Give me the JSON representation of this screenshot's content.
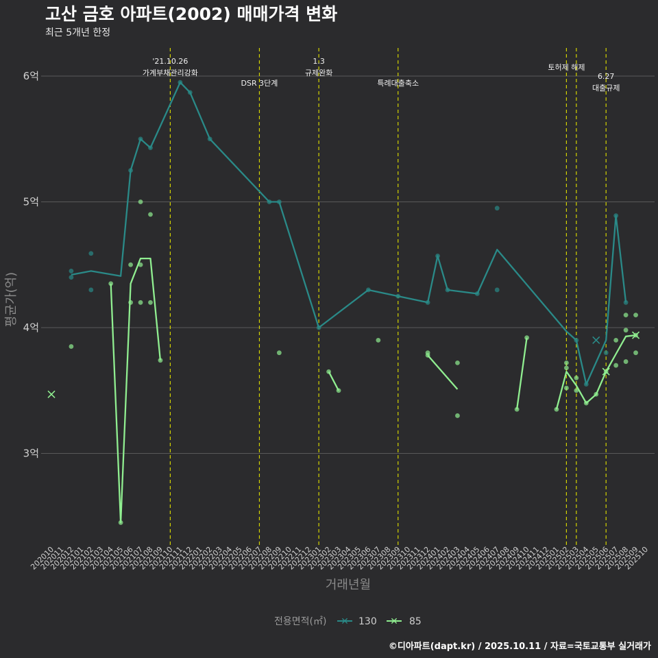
{
  "chart_data": {
    "type": "line",
    "title": "고산 금호 아파트(2002) 매매가격 변화",
    "subtitle": "최근 5개년 한정",
    "xlabel": "거래년월",
    "ylabel": "평균가(억)",
    "y_ticks": [
      3,
      4,
      5,
      6
    ],
    "y_tick_labels": [
      "3억",
      "4억",
      "5억",
      "6억"
    ],
    "ylim": [
      2.25,
      6.3
    ],
    "x_categories": [
      "202010",
      "202011",
      "202012",
      "202101",
      "202102",
      "202103",
      "202104",
      "202105",
      "202106",
      "202107",
      "202108",
      "202109",
      "202110",
      "202111",
      "202112",
      "202201",
      "202202",
      "202203",
      "202204",
      "202205",
      "202206",
      "202207",
      "202208",
      "202209",
      "202210",
      "202211",
      "202212",
      "202301",
      "202302",
      "202303",
      "202304",
      "202305",
      "202306",
      "202307",
      "202308",
      "202309",
      "202310",
      "202311",
      "202312",
      "202401",
      "202402",
      "202403",
      "202404",
      "202405",
      "202406",
      "202407",
      "202408",
      "202409",
      "202410",
      "202411",
      "202412",
      "202501",
      "202502",
      "202503",
      "202504",
      "202505",
      "202506",
      "202507",
      "202508",
      "202509",
      "202510"
    ],
    "annotations": [
      {
        "month": "202110",
        "lines": [
          "'21.10.26",
          "가계부채관리강화"
        ]
      },
      {
        "month": "202207",
        "lines": [
          "DSR 3단계"
        ]
      },
      {
        "month": "202301",
        "lines": [
          "1.3",
          "규제완화"
        ]
      },
      {
        "month": "202309",
        "lines": [
          "특례대출축소"
        ]
      },
      {
        "month": "202502",
        "lines": [
          "토허제 해제"
        ]
      },
      {
        "month": "202503",
        "lines": [
          ""
        ]
      },
      {
        "month": "202506",
        "lines": [
          "6.27",
          "대출규제"
        ]
      }
    ],
    "series": [
      {
        "name": "130",
        "color": "#2a8a88",
        "line": [
          [
            [
              2,
              4.42
            ],
            [
              4,
              4.45
            ],
            [
              7,
              4.41
            ],
            [
              8,
              5.25
            ],
            [
              9,
              5.5
            ],
            [
              10,
              5.43
            ],
            [
              13,
              5.95
            ],
            [
              14,
              5.87
            ],
            [
              16,
              5.5
            ],
            [
              22,
              5.0
            ],
            [
              23,
              5.0
            ],
            [
              27,
              4.0
            ],
            [
              32,
              4.3
            ],
            [
              35,
              4.25
            ],
            [
              38,
              4.2
            ],
            [
              39,
              4.57
            ],
            [
              40,
              4.3
            ],
            [
              43,
              4.27
            ],
            [
              45,
              4.62
            ],
            [
              52,
              3.97
            ],
            [
              53,
              3.9
            ],
            [
              54,
              3.55
            ],
            [
              56,
              3.9
            ],
            [
              57,
              4.89
            ],
            [
              58,
              4.2
            ]
          ]
        ],
        "points": [
          [
            2,
            4.45
          ],
          [
            2,
            4.4
          ],
          [
            4,
            4.3
          ],
          [
            4,
            4.59
          ],
          [
            8,
            5.25
          ],
          [
            9,
            5.5
          ],
          [
            10,
            5.43
          ],
          [
            13,
            5.95
          ],
          [
            14,
            5.87
          ],
          [
            16,
            5.5
          ],
          [
            22,
            5.0
          ],
          [
            23,
            5.0
          ],
          [
            27,
            4.0
          ],
          [
            32,
            4.3
          ],
          [
            35,
            4.25
          ],
          [
            38,
            4.2
          ],
          [
            39,
            4.57
          ],
          [
            40,
            4.3
          ],
          [
            43,
            4.27
          ],
          [
            45,
            4.95
          ],
          [
            45,
            4.3
          ],
          [
            53,
            3.9
          ],
          [
            54,
            3.55
          ],
          [
            56,
            3.8
          ],
          [
            57,
            4.89
          ],
          [
            58,
            4.2
          ]
        ],
        "cross": [
          [
            55,
            3.9
          ]
        ]
      },
      {
        "name": "85",
        "color": "#90ee90",
        "line": [
          [
            [
              6,
              4.35
            ],
            [
              7,
              2.45
            ],
            [
              8,
              4.35
            ],
            [
              9,
              4.55
            ],
            [
              10,
              4.55
            ],
            [
              11,
              3.74
            ]
          ],
          [
            [
              28,
              3.65
            ],
            [
              29,
              3.5
            ]
          ],
          [
            [
              38,
              3.78
            ],
            [
              41,
              3.51
            ]
          ],
          [
            [
              47,
              3.35
            ],
            [
              48,
              3.92
            ]
          ],
          [
            [
              51,
              3.35
            ],
            [
              52,
              3.65
            ],
            [
              53,
              3.54
            ],
            [
              54,
              3.4
            ],
            [
              55,
              3.47
            ],
            [
              56,
              3.65
            ],
            [
              57,
              3.79
            ],
            [
              58,
              3.93
            ],
            [
              59,
              3.94
            ]
          ]
        ],
        "points": [
          [
            2,
            3.85
          ],
          [
            6,
            4.35
          ],
          [
            7,
            2.45
          ],
          [
            8,
            4.5
          ],
          [
            8,
            4.2
          ],
          [
            9,
            4.5
          ],
          [
            9,
            4.2
          ],
          [
            9,
            5.0
          ],
          [
            10,
            4.9
          ],
          [
            10,
            4.2
          ],
          [
            11,
            3.74
          ],
          [
            23,
            3.8
          ],
          [
            28,
            3.65
          ],
          [
            29,
            3.5
          ],
          [
            33,
            3.9
          ],
          [
            38,
            3.8
          ],
          [
            38,
            3.78
          ],
          [
            41,
            3.72
          ],
          [
            41,
            3.3
          ],
          [
            47,
            3.35
          ],
          [
            48,
            3.92
          ],
          [
            51,
            3.35
          ],
          [
            52,
            3.72
          ],
          [
            52,
            3.68
          ],
          [
            52,
            3.52
          ],
          [
            53,
            3.6
          ],
          [
            53,
            3.5
          ],
          [
            54,
            3.4
          ],
          [
            55,
            3.47
          ],
          [
            56,
            3.65
          ],
          [
            57,
            3.7
          ],
          [
            57,
            3.9
          ],
          [
            58,
            4.1
          ],
          [
            58,
            3.98
          ],
          [
            58,
            3.73
          ],
          [
            59,
            4.1
          ],
          [
            59,
            3.8
          ],
          [
            59,
            3.94
          ]
        ],
        "cross": [
          [
            0,
            3.47
          ],
          [
            56,
            3.65
          ],
          [
            59,
            3.94
          ]
        ]
      }
    ]
  },
  "legend": {
    "title": "전용면적(㎡)",
    "items": [
      "130",
      "85"
    ]
  },
  "caption": "©디아파트(dapt.kr) / 2025.10.11 / 자료=국토교통부 실거래가"
}
